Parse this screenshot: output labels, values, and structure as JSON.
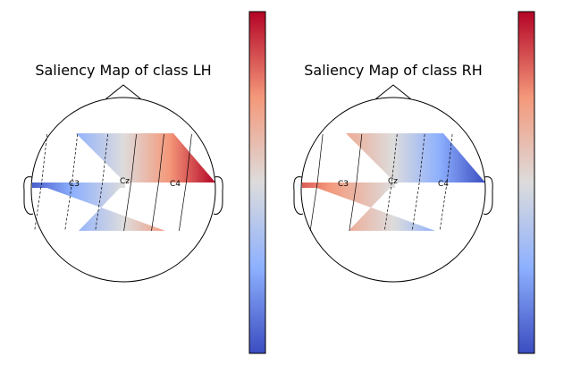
{
  "figure": {
    "panels": [
      {
        "title": "Saliency Map of class LH",
        "electrodes": [
          "C3",
          "Cz",
          "C4"
        ]
      },
      {
        "title": "Saliency Map of class RH",
        "electrodes": [
          "C3",
          "Cz",
          "C4"
        ]
      }
    ],
    "colormap": "coolwarm",
    "colorbar_colors": [
      "#b40426",
      "#f4987a",
      "#dddcdc",
      "#8db0fe",
      "#3b4cc0"
    ]
  },
  "chart_data": [
    {
      "type": "heatmap",
      "subtype": "eeg-topomap",
      "title": "Saliency Map of class LH",
      "channels": [
        "C3",
        "Cz",
        "C4"
      ],
      "values": [
        0.05,
        0.5,
        1.0
      ],
      "colormap": "coolwarm",
      "colorbar_ticks": []
    },
    {
      "type": "heatmap",
      "subtype": "eeg-topomap",
      "title": "Saliency Map of class RH",
      "channels": [
        "C3",
        "Cz",
        "C4"
      ],
      "values": [
        0.85,
        0.5,
        0.0
      ],
      "colormap": "coolwarm",
      "colorbar_ticks": []
    }
  ]
}
